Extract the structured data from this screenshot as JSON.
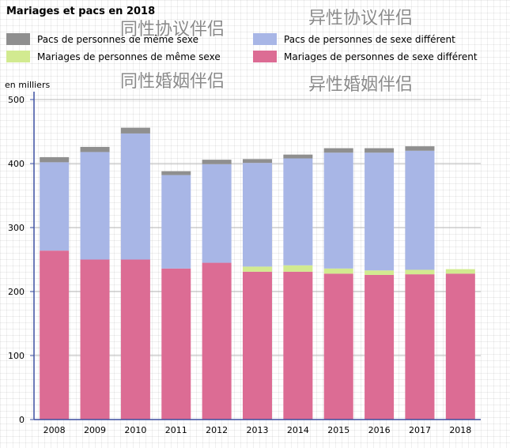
{
  "chart_data": {
    "type": "bar",
    "stacked": true,
    "title": "Mariages et pacs en 2018",
    "ylabel": "en milliers",
    "ylim": [
      0,
      500
    ],
    "yticks": [
      0,
      100,
      200,
      300,
      400,
      500
    ],
    "grid": true,
    "categories": [
      "2008",
      "2009",
      "2010",
      "2011",
      "2012",
      "2013",
      "2014",
      "2015",
      "2016",
      "2017",
      "2018"
    ],
    "series": [
      {
        "name": "Mariages de personnes de sexe différent",
        "color": "#dc6c94",
        "values": [
          264,
          250,
          250,
          236,
          245,
          231,
          231,
          228,
          226,
          227,
          228
        ]
      },
      {
        "name": "Mariages de personnes de même sexe",
        "color": "#d2ea90",
        "values": [
          0,
          0,
          0,
          0,
          0,
          8,
          10,
          8,
          7,
          7,
          7
        ]
      },
      {
        "name": "Pacs de personnes de sexe différent",
        "color": "#a8b6e6",
        "values": [
          138,
          168,
          197,
          146,
          154,
          162,
          167,
          181,
          184,
          186,
          0
        ]
      },
      {
        "name": "Pacs de personnes de même sexe",
        "color": "#8f8f8f",
        "values": [
          8,
          8,
          9,
          6,
          7,
          6,
          6,
          7,
          7,
          7,
          0
        ]
      }
    ],
    "legend": [
      {
        "label": "Pacs de personnes de même sexe",
        "color": "#8f8f8f"
      },
      {
        "label": "Pacs de personnes de sexe différent",
        "color": "#a8b6e6"
      },
      {
        "label": "Mariages de personnes de même sexe",
        "color": "#d2ea90"
      },
      {
        "label": "Mariages de personnes de sexe différent",
        "color": "#dc6c94"
      }
    ],
    "annotations": [
      {
        "text": "同性协议伴侣",
        "position": "top-left"
      },
      {
        "text": "异性协议伴侣",
        "position": "top-right"
      },
      {
        "text": "同性婚姻伴侣",
        "position": "upper-left"
      },
      {
        "text": "异性婚姻伴侣",
        "position": "upper-right"
      }
    ]
  }
}
